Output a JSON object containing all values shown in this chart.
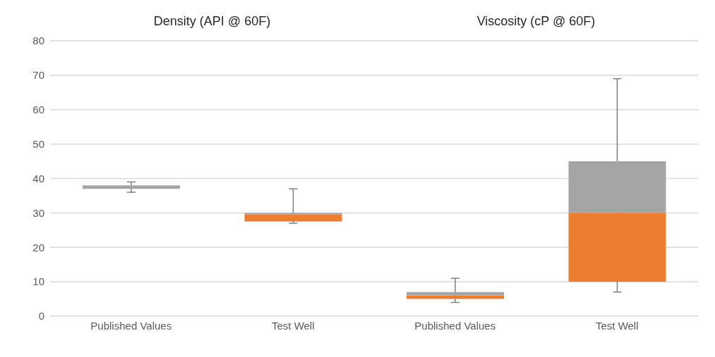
{
  "chart_data": {
    "type": "box",
    "annotations": [
      "Density (API @ 60F)",
      "Viscosity (cP @ 60F)"
    ],
    "categories": [
      "Published Values",
      "Test Well",
      "Published Values",
      "Test Well"
    ],
    "boxes": [
      {
        "low": 36,
        "q1": 37,
        "median": 37,
        "q3": 38,
        "high": 39
      },
      {
        "low": 27,
        "q1": 27.5,
        "median": 29.5,
        "q3": 30,
        "high": 37
      },
      {
        "low": 4,
        "q1": 5,
        "median": 6,
        "q3": 7,
        "high": 11
      },
      {
        "low": 7,
        "q1": 10,
        "median": 30,
        "q3": 45,
        "high": 69
      }
    ],
    "colors": [
      "#a5a5a5",
      "#ed7d31",
      "#ed7d31",
      "#ed7d31"
    ],
    "color": "#a5a5a5",
    "ylim": [
      0,
      80
    ],
    "yticks": [
      0,
      10,
      20,
      30,
      40,
      50,
      60,
      70,
      80
    ],
    "grid": "y"
  }
}
